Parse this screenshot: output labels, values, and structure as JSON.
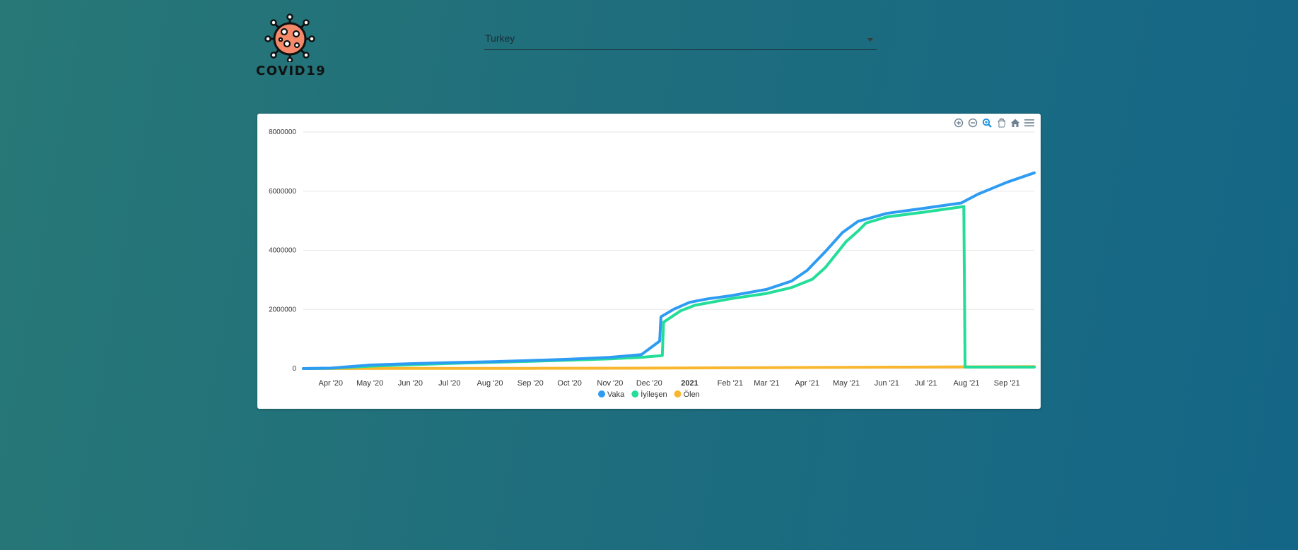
{
  "logo": {
    "text": "COVID19",
    "icon": "virus-icon",
    "color": "#f58a6b"
  },
  "country_select": {
    "value": "Turkey",
    "icon": "chevron-down-icon"
  },
  "toolbar": {
    "icons": [
      "zoom-in-icon",
      "zoom-out-icon",
      "selection-zoom-icon",
      "pan-icon",
      "reset-home-icon",
      "menu-icon"
    ]
  },
  "colors": {
    "vaka": "#2e9cf2",
    "iyilesen": "#24dd98",
    "olen": "#f8b72f",
    "grid": "#e6e6e6"
  },
  "chart_data": {
    "type": "line",
    "title": "",
    "xlabel": "",
    "ylabel": "",
    "ylim": [
      0,
      8000000
    ],
    "yticks": [
      0,
      2000000,
      4000000,
      6000000,
      8000000
    ],
    "ytick_labels": [
      "0",
      "2000000",
      "4000000",
      "6000000",
      "8000000"
    ],
    "xlim": [
      "2020-03-11",
      "2021-09-22"
    ],
    "xticks": [
      {
        "date": "2020-04-01",
        "label": "Apr '20"
      },
      {
        "date": "2020-05-01",
        "label": "May '20"
      },
      {
        "date": "2020-06-01",
        "label": "Jun '20"
      },
      {
        "date": "2020-07-01",
        "label": "Jul '20"
      },
      {
        "date": "2020-08-01",
        "label": "Aug '20"
      },
      {
        "date": "2020-09-01",
        "label": "Sep '20"
      },
      {
        "date": "2020-10-01",
        "label": "Oct '20"
      },
      {
        "date": "2020-11-01",
        "label": "Nov '20"
      },
      {
        "date": "2020-12-01",
        "label": "Dec '20"
      },
      {
        "date": "2021-01-01",
        "label": "2021",
        "bold": true
      },
      {
        "date": "2021-02-01",
        "label": "Feb '21"
      },
      {
        "date": "2021-03-01",
        "label": "Mar '21"
      },
      {
        "date": "2021-04-01",
        "label": "Apr '21"
      },
      {
        "date": "2021-05-01",
        "label": "May '21"
      },
      {
        "date": "2021-06-01",
        "label": "Jun '21"
      },
      {
        "date": "2021-07-01",
        "label": "Jul '21"
      },
      {
        "date": "2021-08-01",
        "label": "Aug '21"
      },
      {
        "date": "2021-09-01",
        "label": "Sep '21"
      }
    ],
    "series": [
      {
        "name": "Vaka",
        "color_key": "vaka",
        "points": [
          [
            "2020-03-11",
            0
          ],
          [
            "2020-04-01",
            15000
          ],
          [
            "2020-05-01",
            120000
          ],
          [
            "2020-06-01",
            164000
          ],
          [
            "2020-07-01",
            200000
          ],
          [
            "2020-08-01",
            230000
          ],
          [
            "2020-09-01",
            272000
          ],
          [
            "2020-10-01",
            318000
          ],
          [
            "2020-11-01",
            380000
          ],
          [
            "2020-11-25",
            470000
          ],
          [
            "2020-12-09",
            930000
          ],
          [
            "2020-12-10",
            1750000
          ],
          [
            "2020-12-20",
            2010000
          ],
          [
            "2021-01-01",
            2240000
          ],
          [
            "2021-01-15",
            2360000
          ],
          [
            "2021-02-01",
            2460000
          ],
          [
            "2021-03-01",
            2680000
          ],
          [
            "2021-03-20",
            2960000
          ],
          [
            "2021-04-01",
            3320000
          ],
          [
            "2021-04-15",
            3960000
          ],
          [
            "2021-04-28",
            4600000
          ],
          [
            "2021-05-10",
            4980000
          ],
          [
            "2021-06-01",
            5250000
          ],
          [
            "2021-07-01",
            5430000
          ],
          [
            "2021-07-28",
            5600000
          ],
          [
            "2021-08-10",
            5900000
          ],
          [
            "2021-09-01",
            6300000
          ],
          [
            "2021-09-22",
            6620000
          ]
        ]
      },
      {
        "name": "İyileşen",
        "color_key": "iyilesen",
        "points": [
          [
            "2020-03-11",
            0
          ],
          [
            "2020-04-01",
            10000
          ],
          [
            "2020-05-01",
            80000
          ],
          [
            "2020-06-01",
            130000
          ],
          [
            "2020-07-01",
            175000
          ],
          [
            "2020-08-01",
            210000
          ],
          [
            "2020-09-01",
            245000
          ],
          [
            "2020-10-01",
            285000
          ],
          [
            "2020-11-01",
            330000
          ],
          [
            "2020-11-25",
            380000
          ],
          [
            "2020-12-11",
            440000
          ],
          [
            "2020-12-12",
            1570000
          ],
          [
            "2020-12-25",
            1950000
          ],
          [
            "2021-01-05",
            2140000
          ],
          [
            "2021-02-01",
            2360000
          ],
          [
            "2021-03-01",
            2540000
          ],
          [
            "2021-03-20",
            2740000
          ],
          [
            "2021-04-05",
            3020000
          ],
          [
            "2021-04-15",
            3420000
          ],
          [
            "2021-05-01",
            4300000
          ],
          [
            "2021-05-10",
            4650000
          ],
          [
            "2021-05-16",
            4920000
          ],
          [
            "2021-06-01",
            5130000
          ],
          [
            "2021-07-01",
            5300000
          ],
          [
            "2021-07-30",
            5480000
          ],
          [
            "2021-07-31",
            50000
          ],
          [
            "2021-09-22",
            50000
          ]
        ]
      },
      {
        "name": "Ölen",
        "color_key": "olen",
        "points": [
          [
            "2020-03-11",
            0
          ],
          [
            "2020-06-01",
            4500
          ],
          [
            "2020-09-01",
            7000
          ],
          [
            "2020-12-01",
            14000
          ],
          [
            "2021-03-01",
            29000
          ],
          [
            "2021-06-01",
            48000
          ],
          [
            "2021-09-22",
            66000
          ]
        ]
      }
    ]
  }
}
